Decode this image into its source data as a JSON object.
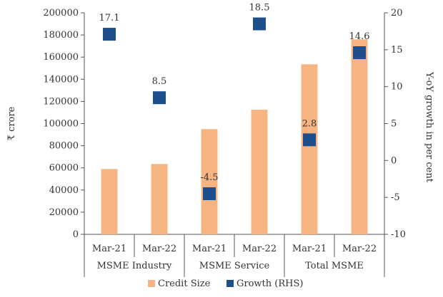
{
  "chart_data": {
    "type": "bar",
    "ylabel": "₹ crore",
    "y2label": "Y-oY growth in per cent",
    "ylim": [
      0,
      200000
    ],
    "y2lim": [
      -10,
      20
    ],
    "yticks": [
      "0",
      "20000",
      "40000",
      "60000",
      "80000",
      "100000",
      "120000",
      "140000",
      "160000",
      "180000",
      "200000"
    ],
    "y2ticks": [
      "-10",
      "-5",
      "0",
      "5",
      "10",
      "15",
      "20"
    ],
    "categories": [
      "Mar-21",
      "Mar-22",
      "Mar-21",
      "Mar-22",
      "Mar-21",
      "Mar-22"
    ],
    "groups": [
      {
        "label": "MSME Industry",
        "span": [
          0,
          1
        ]
      },
      {
        "label": "MSME Service",
        "span": [
          2,
          3
        ]
      },
      {
        "label": "Total MSME",
        "span": [
          4,
          5
        ]
      }
    ],
    "series": [
      {
        "name": "Credit Size",
        "kind": "bar",
        "axis": "left",
        "color": "#f6b483",
        "values": [
          59000,
          63500,
          95000,
          112500,
          153500,
          176000
        ]
      },
      {
        "name": "Growth (RHS)",
        "kind": "marker",
        "axis": "right",
        "color": "#1f4e8c",
        "values": [
          17.1,
          8.5,
          -4.5,
          18.5,
          2.8,
          14.6
        ],
        "labels": [
          "17.1",
          "8.5",
          "-4.5",
          "18.5",
          "2.8",
          "14.6"
        ]
      }
    ],
    "legend_position": "bottom",
    "grid": false
  }
}
